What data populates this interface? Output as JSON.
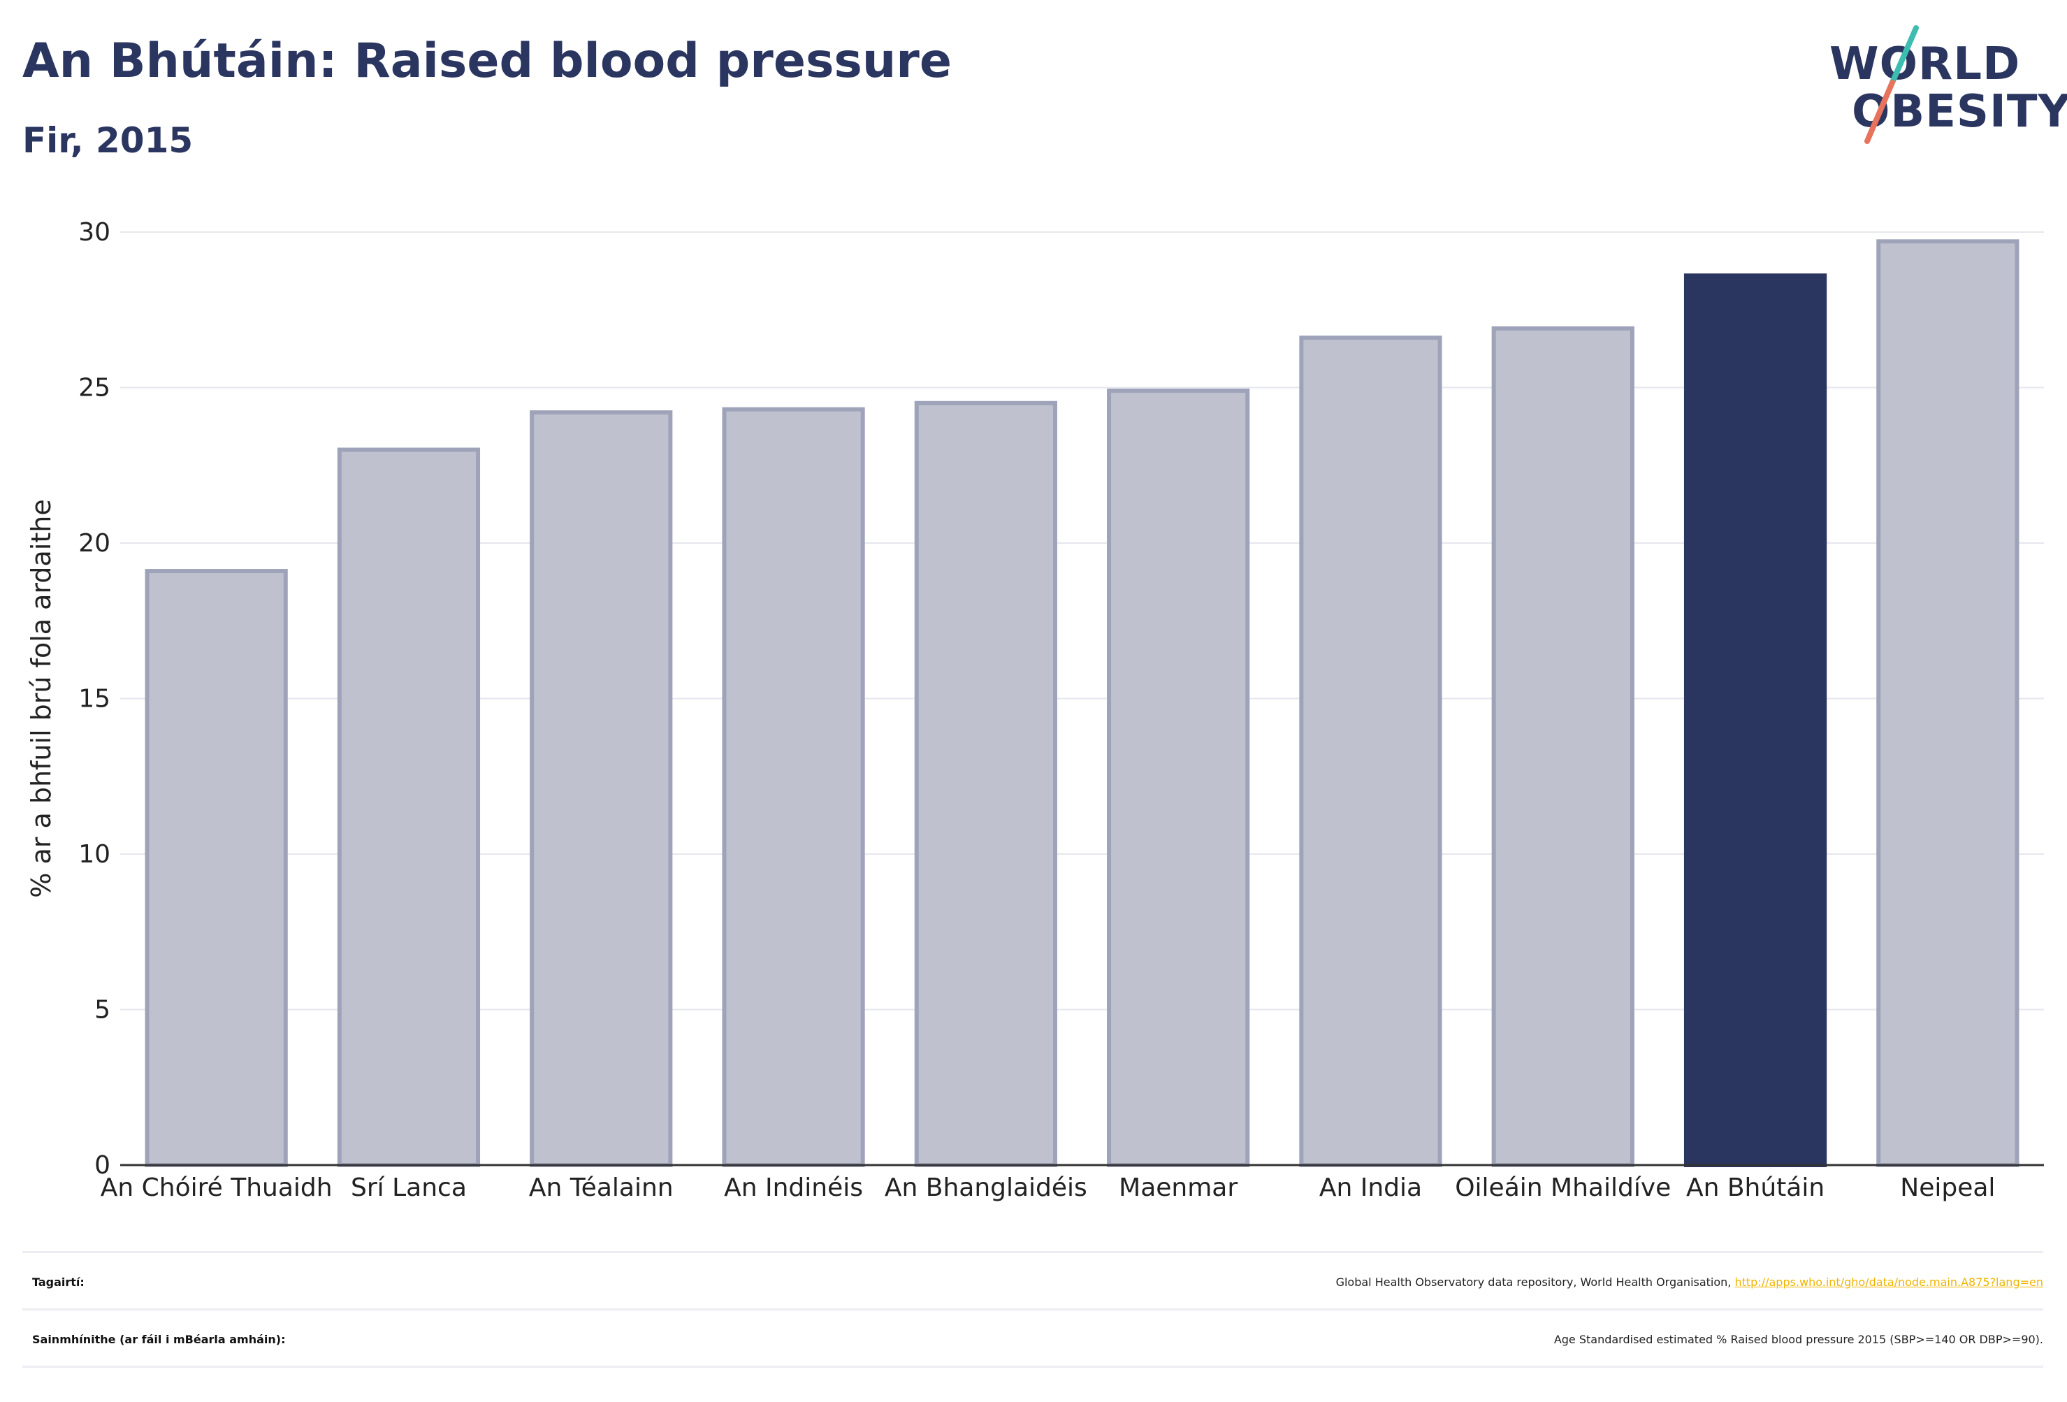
{
  "header": {
    "title": "An Bhútáin: Raised blood pressure",
    "subtitle": "Fir, 2015"
  },
  "logo": {
    "line1": "WORLD",
    "line2": "OBESITY"
  },
  "colors": {
    "highlight": "#2a3560",
    "bar_fill": "#bfc2ce",
    "bar_stroke": "#9ea3b9",
    "accent_teal": "#3cbdb0",
    "accent_coral": "#e8735c",
    "link": "#f0b400"
  },
  "chart_data": {
    "type": "bar",
    "title": "An Bhútáin: Raised blood pressure",
    "subtitle": "Fir, 2015",
    "xlabel": "",
    "ylabel": "% ar a bhfuil brú fola ardaithe",
    "ylim": [
      0,
      30
    ],
    "yticks": [
      0,
      5,
      10,
      15,
      20,
      25,
      30
    ],
    "grid": true,
    "categories": [
      "An Chóiré Thuaidh",
      "Srí Lanca",
      "An Téalainn",
      "An Indinéis",
      "An Bhanglaidéis",
      "Maenmar",
      "An India",
      "Oileáin Mhaildíve",
      "An Bhútáin",
      "Neipeal"
    ],
    "values": [
      19.1,
      23.0,
      24.2,
      24.3,
      24.5,
      24.9,
      26.6,
      26.9,
      28.6,
      29.7
    ],
    "highlight": "An Bhútáin"
  },
  "footer": {
    "references_label": "Tagairtí:",
    "references_text": "Global Health Observatory data repository, World Health Organisation, ",
    "references_link": "http://apps.who.int/gho/data/node.main.A875?lang=en",
    "definitions_label": "Sainmhínithe (ar fáil i mBéarla amháin):",
    "definitions_text": "Age Standardised estimated % Raised blood pressure 2015 (SBP>=140 OR DBP>=90)."
  }
}
